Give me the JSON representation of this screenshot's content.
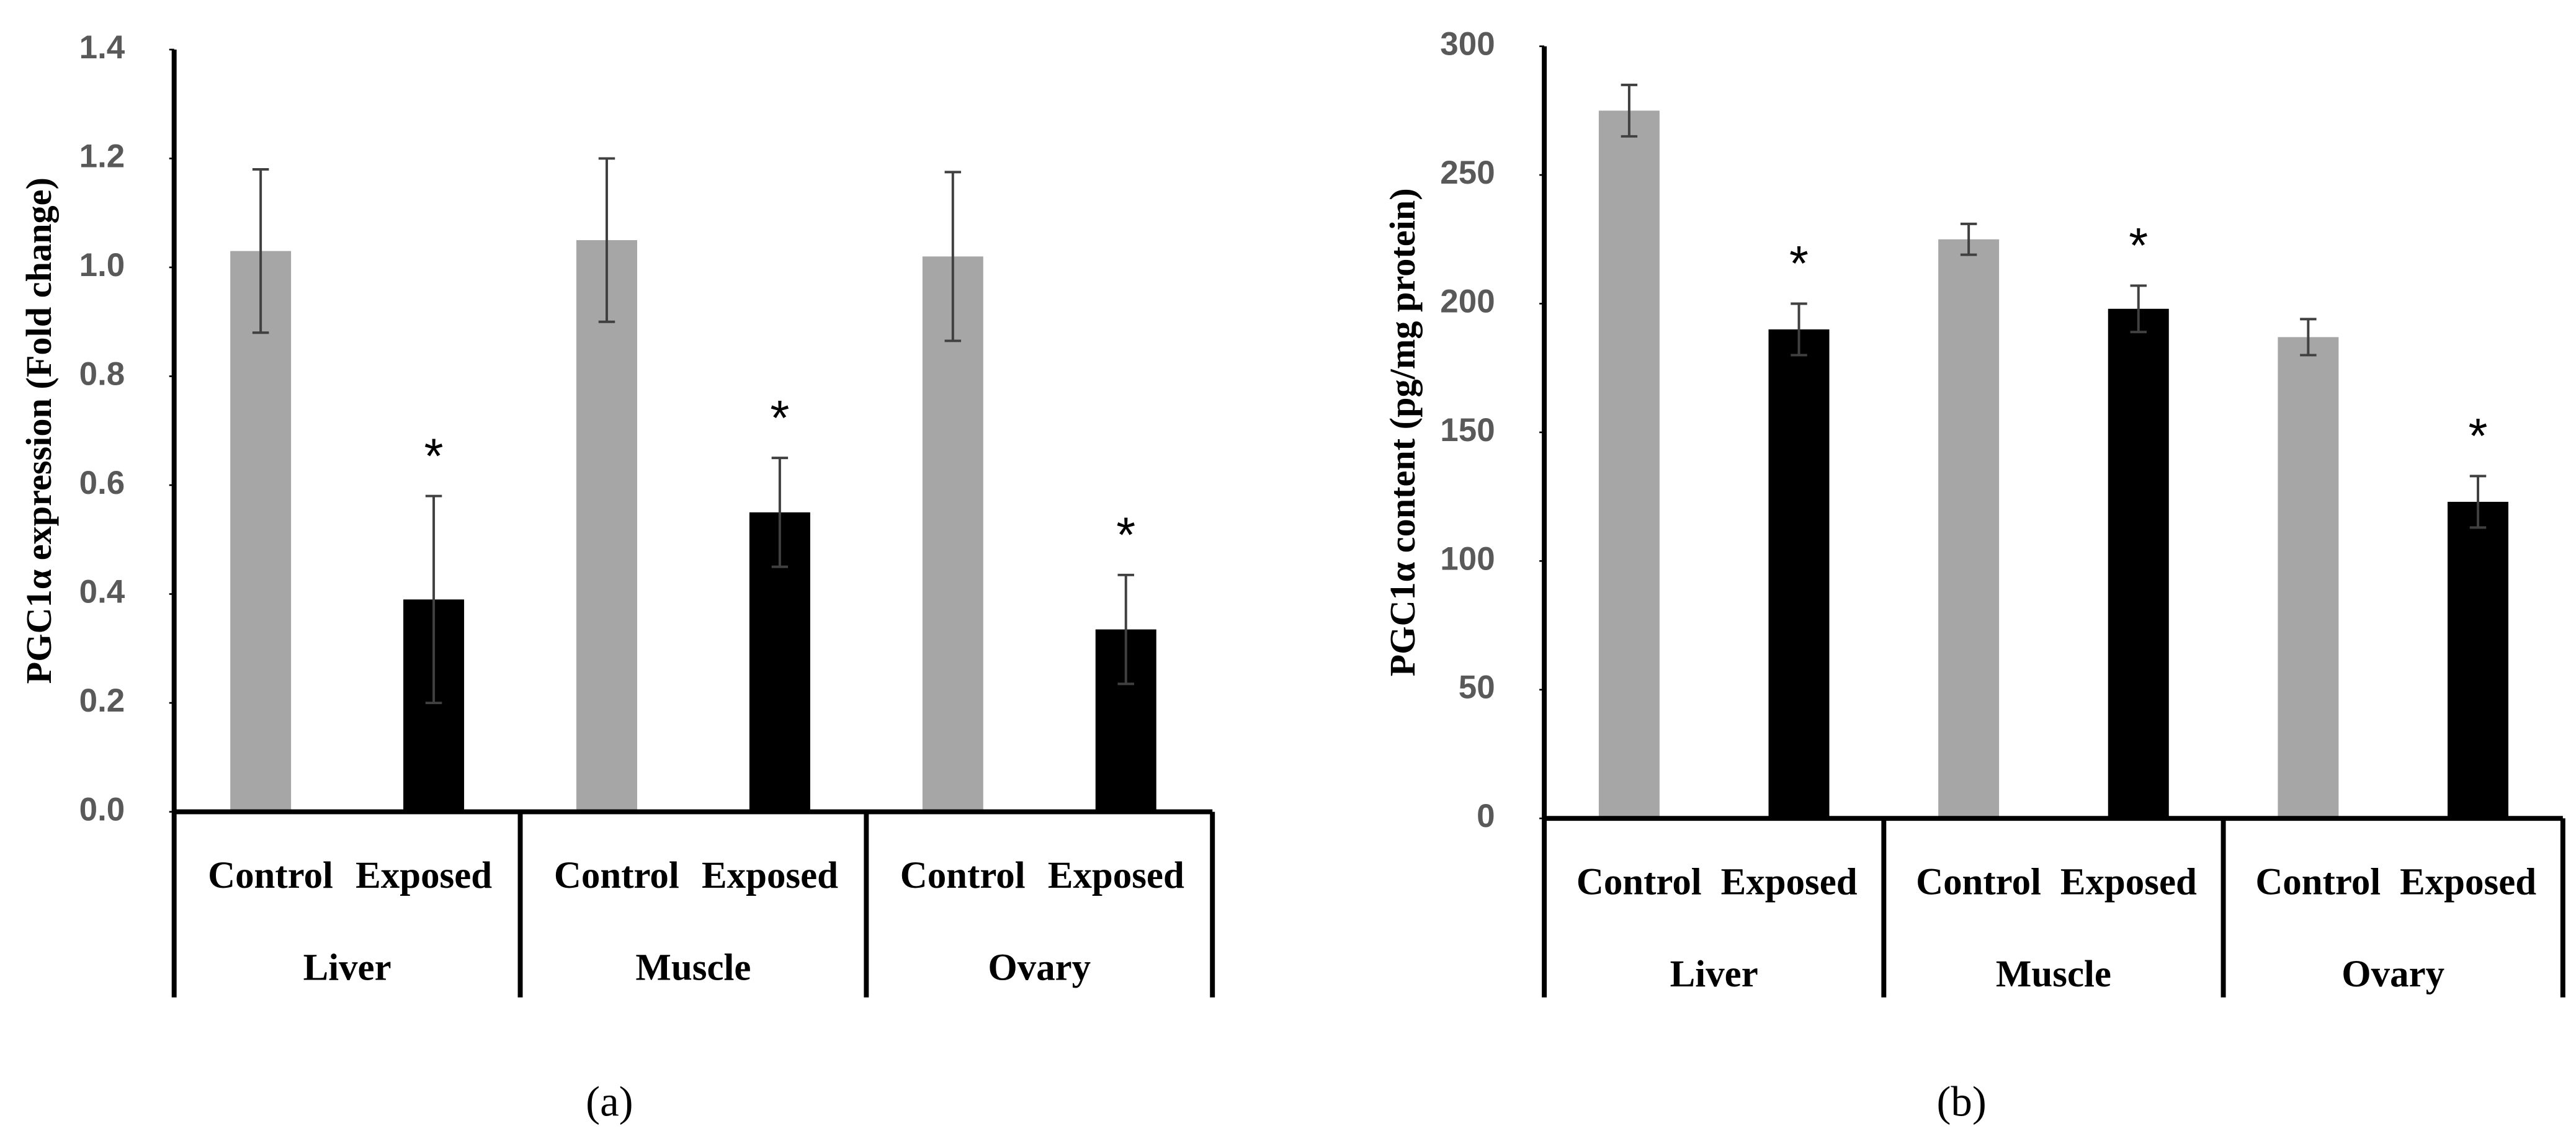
{
  "chart_data": [
    {
      "type": "bar",
      "label": "(a)",
      "y_label": "PGC1α  expression (Fold change)",
      "groups": [
        "Liver",
        "Muscle",
        "Ovary"
      ],
      "series": [
        {
          "name": "Control",
          "color": "#a6a6a6",
          "values": [
            1.03,
            1.05,
            1.02
          ],
          "errors": [
            0.15,
            0.15,
            0.155
          ]
        },
        {
          "name": "Exposed",
          "color": "#000000",
          "values": [
            0.39,
            0.55,
            0.335
          ],
          "errors": [
            0.19,
            0.1,
            0.1
          ],
          "annotations": [
            "*",
            "*",
            "*"
          ]
        }
      ],
      "ylim": [
        0,
        1.4
      ],
      "yticks": [
        {
          "value": 0,
          "label": "0.0"
        },
        0.2,
        0.4,
        0.6,
        0.8,
        {
          "value": 1,
          "label": "1.0"
        },
        1.2,
        1.4
      ]
    },
    {
      "type": "bar",
      "label": "(b)",
      "y_label": "PGC1α content (pg/mg protein)",
      "groups": [
        "Liver",
        "Muscle",
        "Ovary"
      ],
      "series": [
        {
          "name": "Control",
          "color": "#a6a6a6",
          "values": [
            275,
            225,
            187
          ],
          "errors": [
            10,
            6,
            7
          ]
        },
        {
          "name": "Exposed",
          "color": "#000000",
          "values": [
            190,
            198,
            123
          ],
          "errors": [
            10,
            9,
            10
          ],
          "annotations": [
            "*",
            "*",
            "*"
          ]
        }
      ],
      "ylim": [
        0,
        300
      ],
      "yticks": [
        0,
        50,
        100,
        150,
        200,
        250,
        300
      ]
    }
  ]
}
